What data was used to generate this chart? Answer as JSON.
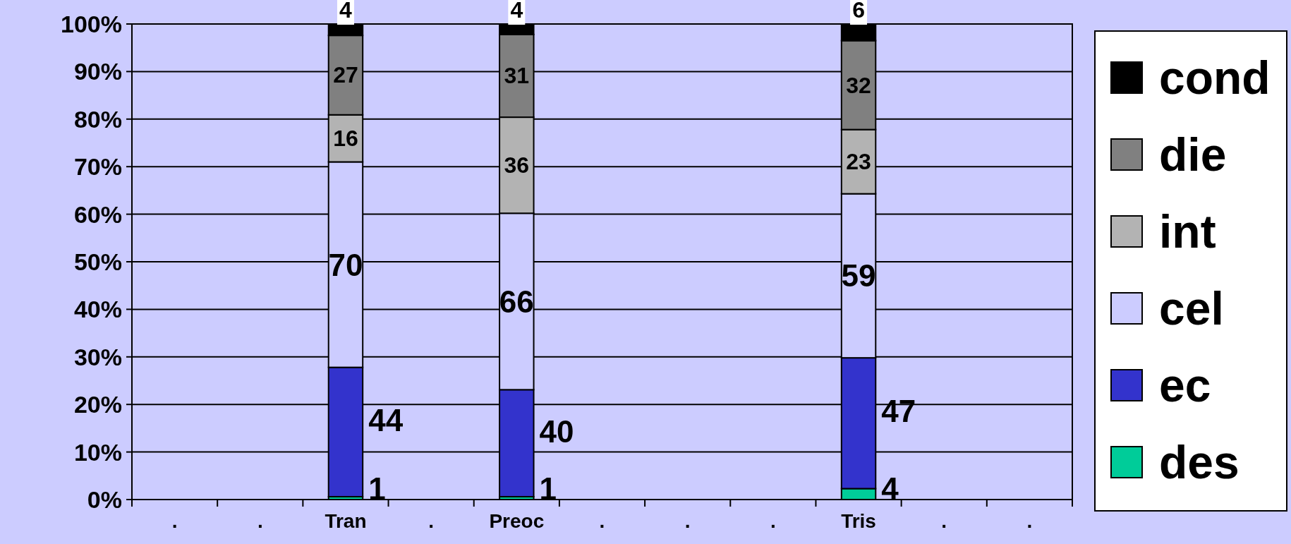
{
  "chart_data": {
    "type": "bar",
    "stacked": true,
    "categories": [
      ".",
      ".",
      "Tran",
      ".",
      "Preoc",
      ".",
      ".",
      ".",
      "Tris",
      ".",
      "."
    ],
    "series": [
      {
        "name": "des",
        "color": "#00cc99",
        "values": [
          null,
          null,
          0.6,
          null,
          0.6,
          null,
          null,
          null,
          2.3,
          null,
          null
        ]
      },
      {
        "name": "ec",
        "color": "#3333cc",
        "values": [
          null,
          null,
          27.2,
          null,
          22.5,
          null,
          null,
          null,
          27.5,
          null,
          null
        ]
      },
      {
        "name": "cel",
        "color": "#ccccff",
        "values": [
          null,
          null,
          43.2,
          null,
          37.1,
          null,
          null,
          null,
          34.5,
          null,
          null
        ]
      },
      {
        "name": "int",
        "color": "#b3b3b3",
        "values": [
          null,
          null,
          9.9,
          null,
          20.2,
          null,
          null,
          null,
          13.5,
          null,
          null
        ]
      },
      {
        "name": "die",
        "color": "#808080",
        "values": [
          null,
          null,
          16.7,
          null,
          17.4,
          null,
          null,
          null,
          18.7,
          null,
          null
        ]
      },
      {
        "name": "cond",
        "color": "#000000",
        "values": [
          null,
          null,
          2.4,
          null,
          2.2,
          null,
          null,
          null,
          3.5,
          null,
          null
        ]
      }
    ],
    "annotations": [
      "1",
      "1",
      "4",
      "44",
      "40",
      "47",
      "70",
      "66",
      "59",
      "16",
      "36",
      "23",
      "27",
      "31",
      "32",
      "4",
      "4",
      "6"
    ],
    "ylim": [
      0,
      100
    ],
    "yticks": [
      {
        "value": 0,
        "label": "0%"
      },
      {
        "value": 10,
        "label": "10%"
      },
      {
        "value": 20,
        "label": "20%"
      },
      {
        "value": 30,
        "label": "30%"
      },
      {
        "value": 40,
        "label": "40%"
      },
      {
        "value": 50,
        "label": "50%"
      },
      {
        "value": 60,
        "label": "60%"
      },
      {
        "value": 70,
        "label": "70%"
      },
      {
        "value": 80,
        "label": "80%"
      },
      {
        "value": 90,
        "label": "90%"
      },
      {
        "value": 100,
        "label": "100%"
      }
    ],
    "grid": "y",
    "legend": "right"
  }
}
